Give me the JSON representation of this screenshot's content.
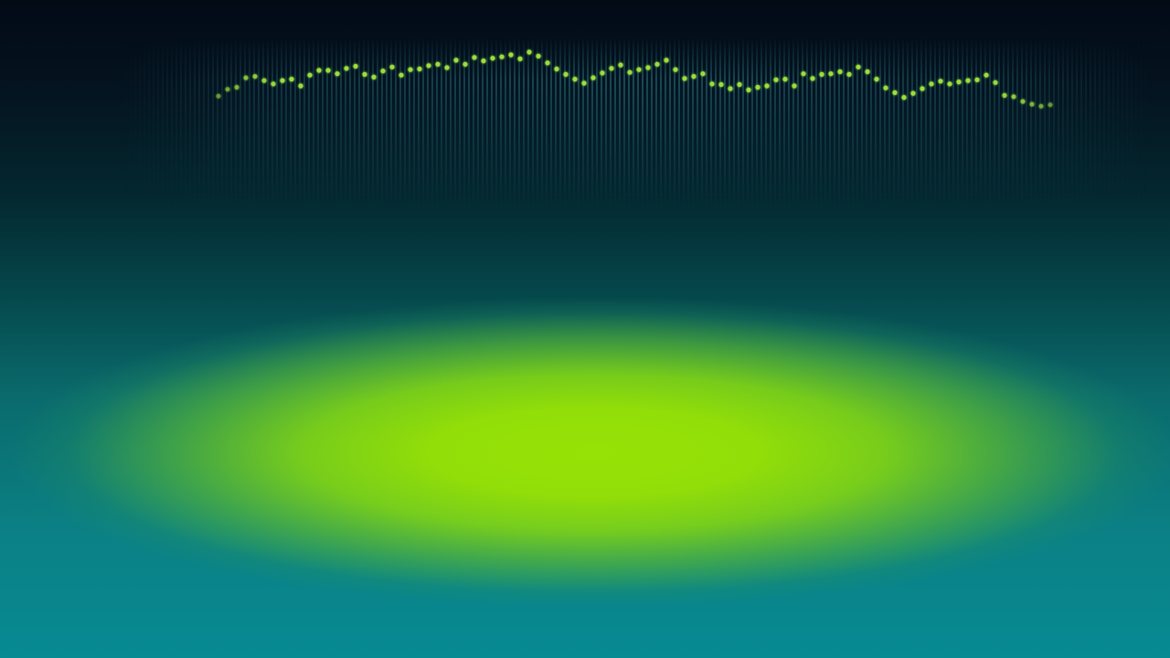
{
  "wallpaper": {
    "colors": {
      "top": "#020a16",
      "bottom": "#078a92",
      "glow": "#92de08",
      "bars": "#2a7a86",
      "dots": "#9adf3c"
    },
    "level_series": [
      0.35,
      0.45,
      0.48,
      0.62,
      0.64,
      0.58,
      0.53,
      0.58,
      0.6,
      0.5,
      0.66,
      0.73,
      0.73,
      0.68,
      0.76,
      0.79,
      0.67,
      0.63,
      0.72,
      0.78,
      0.66,
      0.74,
      0.75,
      0.8,
      0.82,
      0.77,
      0.88,
      0.82,
      0.92,
      0.87,
      0.91,
      0.93,
      0.96,
      0.9,
      1.0,
      0.94,
      0.84,
      0.75,
      0.67,
      0.6,
      0.54,
      0.62,
      0.69,
      0.76,
      0.81,
      0.7,
      0.74,
      0.77,
      0.82,
      0.88,
      0.74,
      0.61,
      0.64,
      0.68,
      0.53,
      0.52,
      0.46,
      0.52,
      0.44,
      0.48,
      0.5,
      0.59,
      0.6,
      0.5,
      0.68,
      0.61,
      0.67,
      0.68,
      0.71,
      0.67,
      0.78,
      0.71,
      0.6,
      0.47,
      0.4,
      0.33,
      0.39,
      0.46,
      0.53,
      0.57,
      0.53,
      0.56,
      0.58,
      0.59,
      0.66,
      0.55,
      0.36,
      0.34,
      0.27,
      0.23,
      0.2,
      0.22
    ]
  }
}
